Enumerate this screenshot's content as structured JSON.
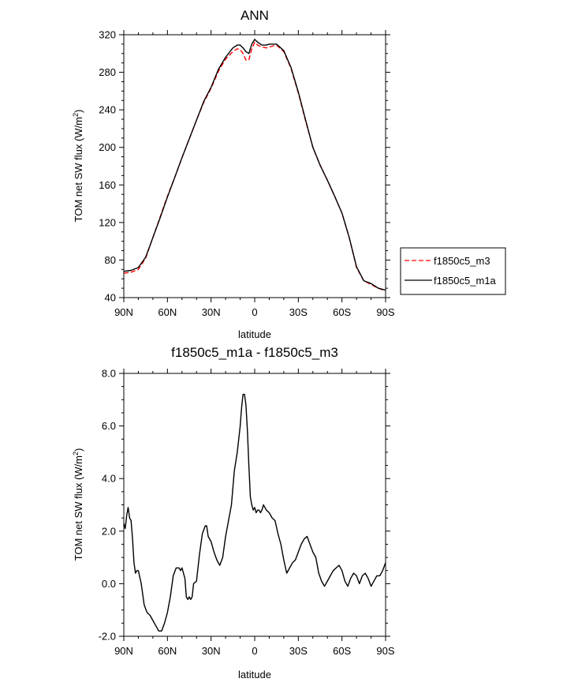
{
  "chart_data": [
    {
      "type": "line",
      "title": "ANN",
      "xlabel": "latitude",
      "ylabel": "TOM net SW flux (W/m",
      "ylabel_sup": "2",
      "ylabel_close": ")",
      "xlim": [
        90,
        -90
      ],
      "ylim": [
        40,
        320
      ],
      "x_ticks": [
        90,
        60,
        30,
        0,
        -30,
        -60,
        -90
      ],
      "x_tick_labels": [
        "90N",
        "60N",
        "30N",
        "0",
        "30S",
        "60S",
        "90S"
      ],
      "y_ticks": [
        40,
        80,
        120,
        160,
        200,
        240,
        280,
        320
      ],
      "y_tick_labels": [
        "40",
        "80",
        "120",
        "160",
        "200",
        "240",
        "280",
        "320"
      ],
      "legend": {
        "position": "right",
        "entries": [
          "f1850c5_m3",
          "f1850c5_m1a"
        ]
      },
      "series": [
        {
          "name": "f1850c5_m3",
          "color": "#ff0000",
          "dash": "dashed",
          "x": [
            90,
            85,
            80,
            75,
            70,
            65,
            60,
            55,
            50,
            45,
            40,
            35,
            30,
            25,
            20,
            15,
            12,
            10,
            8,
            6,
            4,
            2,
            0,
            -2,
            -5,
            -8,
            -10,
            -15,
            -20,
            -25,
            -30,
            -35,
            -40,
            -45,
            -50,
            -55,
            -60,
            -65,
            -70,
            -75,
            -80,
            -85,
            -90
          ],
          "values": [
            66,
            67,
            70,
            82,
            104,
            126,
            148,
            168,
            189,
            209,
            229,
            248,
            263,
            281,
            294,
            302,
            305,
            304,
            300,
            293,
            293,
            305,
            312,
            309,
            307,
            306,
            307,
            309,
            302,
            284,
            258,
            228,
            200,
            181,
            165,
            148,
            130,
            104,
            72,
            58,
            54,
            50,
            47
          ]
        },
        {
          "name": "f1850c5_m1a",
          "color": "#000000",
          "dash": "solid",
          "x": [
            90,
            85,
            80,
            75,
            70,
            65,
            60,
            55,
            50,
            45,
            40,
            35,
            30,
            25,
            20,
            15,
            12,
            10,
            8,
            6,
            4,
            2,
            0,
            -2,
            -5,
            -8,
            -10,
            -15,
            -20,
            -25,
            -30,
            -35,
            -40,
            -45,
            -50,
            -55,
            -60,
            -65,
            -70,
            -75,
            -80,
            -85,
            -90
          ],
          "values": [
            68,
            69,
            72,
            83,
            104,
            125,
            147,
            168,
            189,
            209,
            229,
            249,
            264,
            283,
            296,
            306,
            309,
            309,
            306,
            302,
            300,
            310,
            315,
            312,
            309,
            309,
            310,
            310,
            303,
            285,
            259,
            229,
            200,
            181,
            165,
            148,
            130,
            104,
            73,
            58,
            55,
            50,
            48
          ]
        }
      ]
    },
    {
      "type": "line",
      "title": "f1850c5_m1a - f1850c5_m3",
      "xlabel": "latitude",
      "ylabel": "TOM net SW flux (W/m",
      "ylabel_sup": "2",
      "ylabel_close": ")",
      "xlim": [
        90,
        -90
      ],
      "ylim": [
        -2,
        8
      ],
      "x_ticks": [
        90,
        60,
        30,
        0,
        -30,
        -60,
        -90
      ],
      "x_tick_labels": [
        "90N",
        "60N",
        "30N",
        "0",
        "30S",
        "60S",
        "90S"
      ],
      "y_ticks": [
        -2,
        0,
        2,
        4,
        6,
        8
      ],
      "y_tick_labels": [
        "-2.0",
        "0.0",
        "2.0",
        "4.0",
        "6.0",
        "8.0"
      ],
      "series": [
        {
          "name": "f1850c5_m1a - f1850c5_m3",
          "color": "#000000",
          "dash": "solid",
          "x": [
            90,
            89,
            88,
            87,
            86,
            85,
            84,
            83,
            82,
            81,
            80,
            78,
            76,
            74,
            72,
            70,
            68,
            66,
            64,
            62,
            60,
            58,
            56,
            54,
            53,
            52,
            51,
            50,
            48,
            47,
            46,
            45,
            44,
            43,
            42,
            40,
            38,
            36,
            34,
            33,
            32,
            30,
            28,
            26,
            24,
            22,
            20,
            18,
            16,
            14,
            12,
            10,
            9,
            8,
            7,
            6,
            5,
            4,
            3,
            2,
            1,
            0,
            -1,
            -2,
            -3,
            -4,
            -5,
            -6,
            -8,
            -10,
            -12,
            -14,
            -16,
            -18,
            -20,
            -22,
            -24,
            -26,
            -28,
            -30,
            -32,
            -34,
            -36,
            -38,
            -40,
            -42,
            -44,
            -46,
            -48,
            -50,
            -52,
            -54,
            -56,
            -58,
            -60,
            -62,
            -64,
            -66,
            -68,
            -70,
            -72,
            -74,
            -76,
            -78,
            -80,
            -82,
            -84,
            -86,
            -88,
            -90
          ],
          "values": [
            2.3,
            2.1,
            2.6,
            2.9,
            2.5,
            2.4,
            1.7,
            0.8,
            0.4,
            0.5,
            0.5,
            0.0,
            -0.8,
            -1.1,
            -1.2,
            -1.4,
            -1.6,
            -1.8,
            -1.8,
            -1.5,
            -1.1,
            -0.5,
            0.3,
            0.6,
            0.6,
            0.6,
            0.5,
            0.6,
            0.2,
            -0.5,
            -0.6,
            -0.5,
            -0.6,
            -0.5,
            0.0,
            0.1,
            1.1,
            1.9,
            2.2,
            2.2,
            1.8,
            1.6,
            1.2,
            0.9,
            0.7,
            1.0,
            1.8,
            2.4,
            3.0,
            4.3,
            5.0,
            6.0,
            6.7,
            7.2,
            7.2,
            6.8,
            5.8,
            4.5,
            3.3,
            3.0,
            2.8,
            2.9,
            2.7,
            2.8,
            2.8,
            2.7,
            2.8,
            3.0,
            2.8,
            2.7,
            2.5,
            2.4,
            1.9,
            1.5,
            0.9,
            0.4,
            0.6,
            0.8,
            0.9,
            1.2,
            1.5,
            1.7,
            1.8,
            1.5,
            1.2,
            1.0,
            0.4,
            0.1,
            -0.1,
            0.1,
            0.3,
            0.5,
            0.6,
            0.7,
            0.5,
            0.1,
            -0.1,
            0.2,
            0.4,
            0.3,
            0.0,
            0.3,
            0.4,
            0.2,
            -0.1,
            0.1,
            0.3,
            0.3,
            0.5,
            0.8
          ]
        }
      ]
    }
  ]
}
